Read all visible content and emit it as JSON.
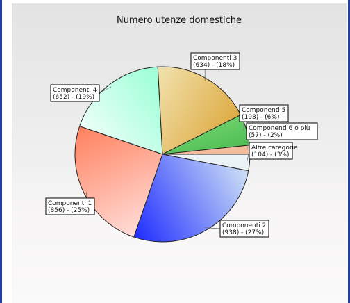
{
  "chart_data": {
    "type": "pie",
    "title": "Numero utenze domestiche",
    "slices": [
      {
        "name": "Altre categorie",
        "value": 104,
        "label_top": "Altre categorie",
        "label_bottom": "(104) - (3%)",
        "color": "#ffffff",
        "dark": "#d8e7ec"
      },
      {
        "name": "Componenti 2",
        "value": 938,
        "label_top": "Componenti 2",
        "label_bottom": "(938) - (27%)",
        "color": "#d3e7f5",
        "dark": "#1a27ff"
      },
      {
        "name": "Componenti 1",
        "value": 856,
        "label_top": "Componenti 1",
        "label_bottom": "(856) - (25%)",
        "color": "#ffe3e0",
        "dark": "#ff7a55"
      },
      {
        "name": "Componenti 4",
        "value": 652,
        "label_top": "Componenti 4",
        "label_bottom": "(652) - (19%)",
        "color": "#ffffff",
        "dark": "#88ffcf"
      },
      {
        "name": "Componenti 3",
        "value": 634,
        "label_top": "Componenti 3",
        "label_bottom": "(634) - (18%)",
        "color": "#f6efc7",
        "dark": "#d99e2a"
      },
      {
        "name": "Componenti 5",
        "value": 198,
        "label_top": "Componenti 5",
        "label_bottom": "(198) - (6%)",
        "color": "#9ff09c",
        "dark": "#1c9e22"
      },
      {
        "name": "Componenti 6 o più",
        "value": 57,
        "label_top": "Componenti 6 o più",
        "label_bottom": "(57) - (2%)",
        "color": "#ffd8c0",
        "dark": "#e6a07a"
      }
    ],
    "start_angle_deg": 0,
    "direction": "clockwise",
    "legend": "none",
    "grid": false
  }
}
